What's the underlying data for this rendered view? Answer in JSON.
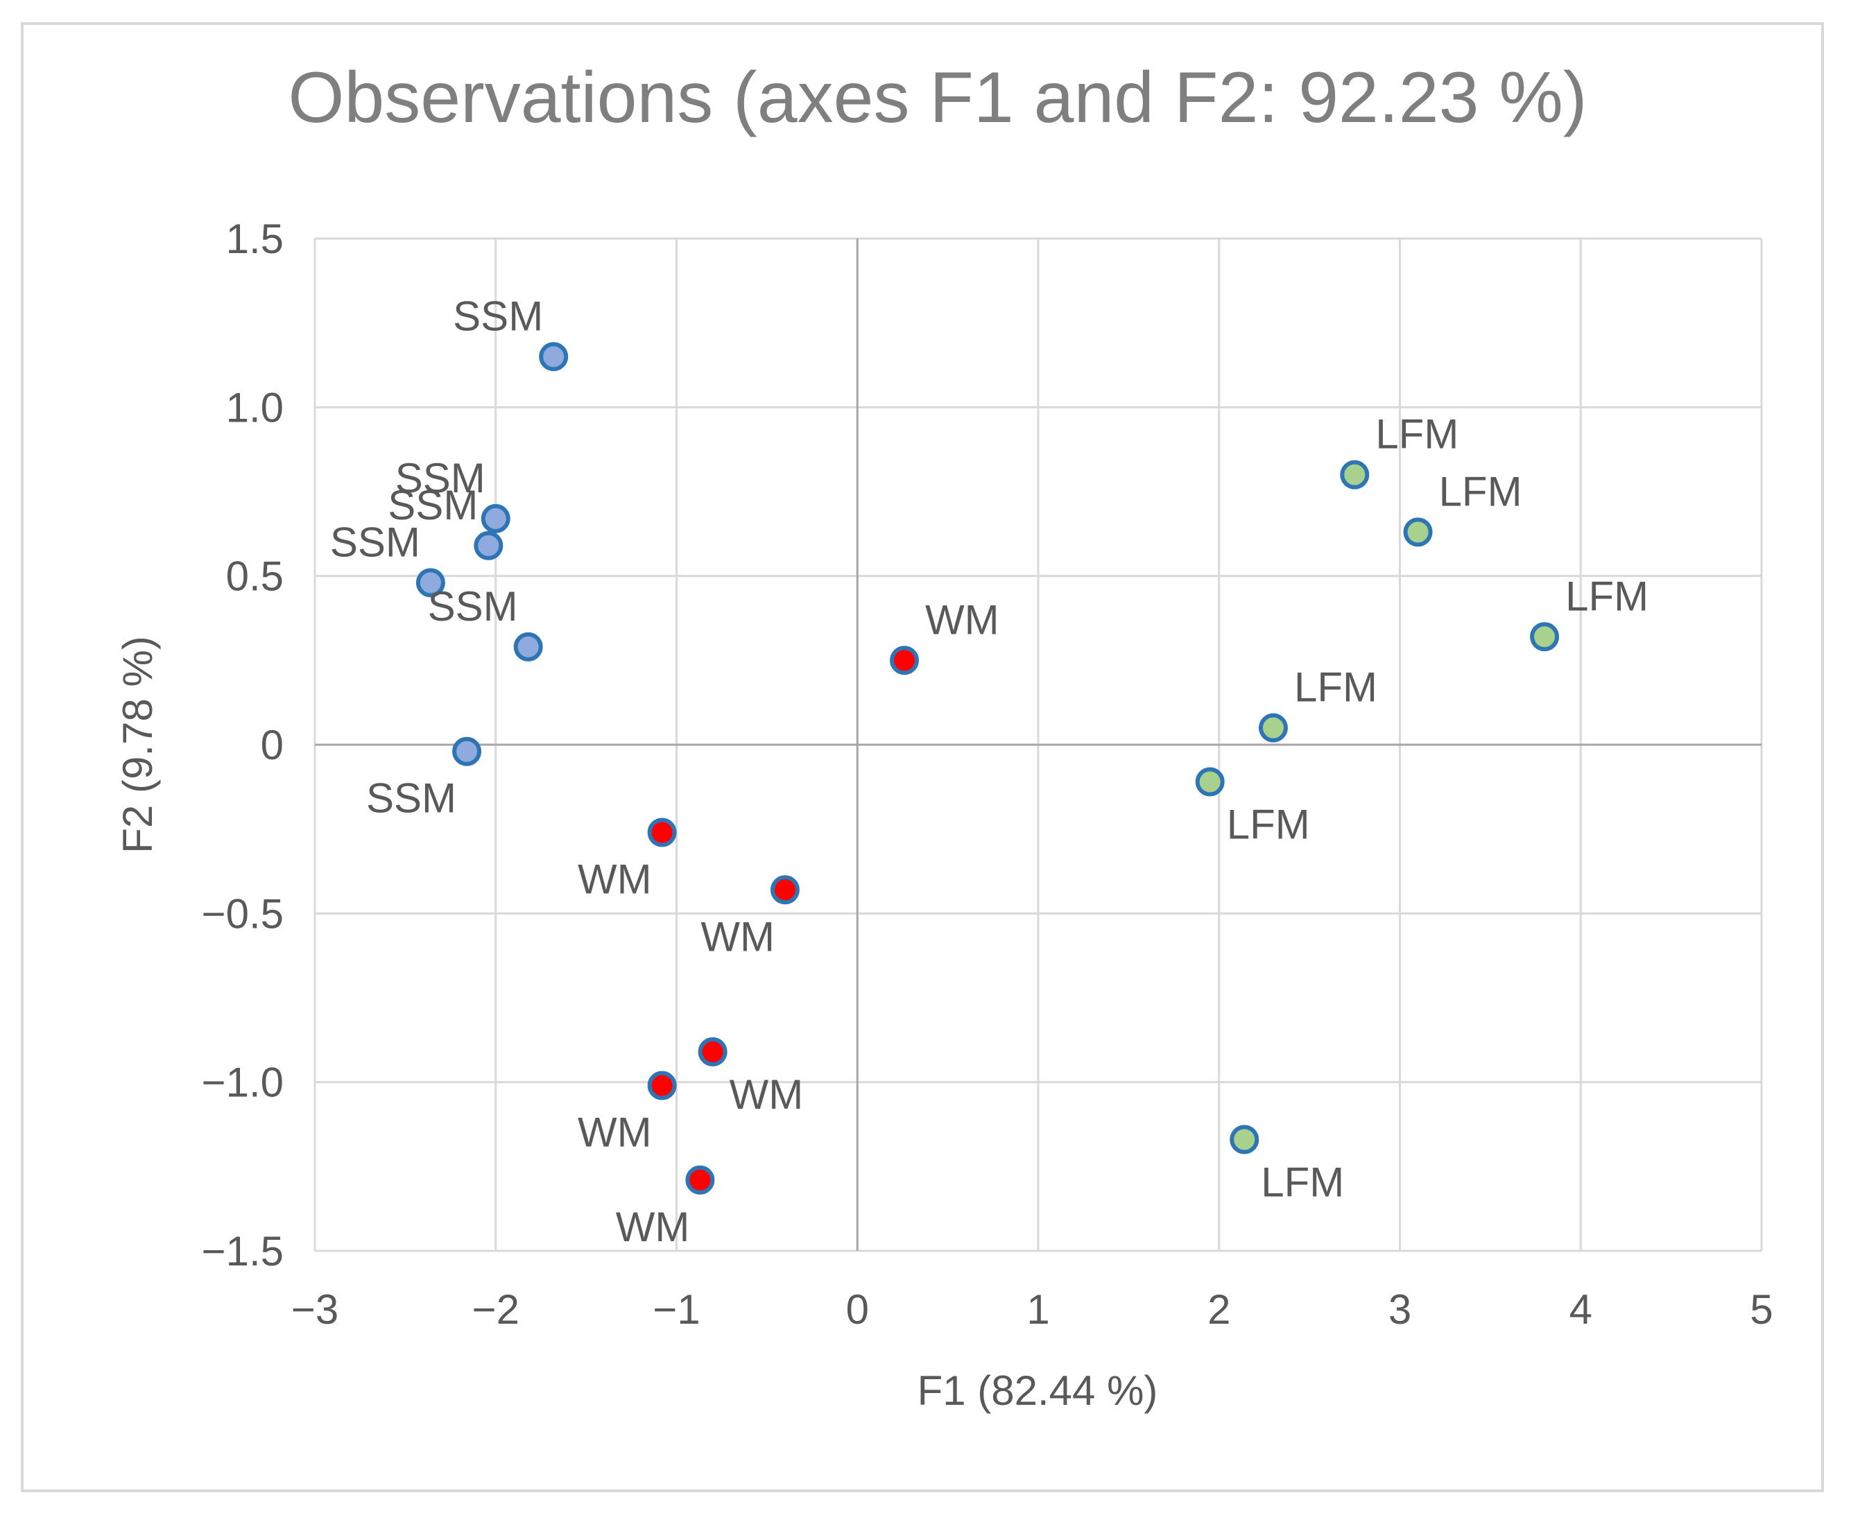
{
  "chart_data": {
    "type": "scatter",
    "title": "Observations (axes F1 and F2: 92.23 %)",
    "xlabel": "F1 (82.44 %)",
    "ylabel": "F2 (9.78 %)",
    "xlim": [
      -3,
      5
    ],
    "ylim": [
      -1.5,
      1.5
    ],
    "x_ticks": [
      -3,
      -2,
      -1,
      0,
      1,
      2,
      3,
      4,
      5
    ],
    "x_tick_labels": [
      "−3",
      "−2",
      "−1",
      "0",
      "1",
      "2",
      "3",
      "4",
      "5"
    ],
    "y_ticks": [
      -1.5,
      -1.0,
      -0.5,
      0,
      0.5,
      1.0,
      1.5
    ],
    "y_tick_labels": [
      "−1.5",
      "−1.0",
      "−0.5",
      "0",
      "0.5",
      "1.0",
      "1.5"
    ],
    "grid": true,
    "legend": false,
    "series": [
      {
        "name": "SSM",
        "fill": "#8faadc",
        "stroke": "#2e75b6",
        "points": [
          {
            "x": -1.68,
            "y": 1.15,
            "label": "SSM",
            "label_pos": "above-left"
          },
          {
            "x": -2.0,
            "y": 0.67,
            "label": "SSM",
            "label_pos": "above-left"
          },
          {
            "x": -2.04,
            "y": 0.59,
            "label": "SSM",
            "label_pos": "above-left"
          },
          {
            "x": -2.36,
            "y": 0.48,
            "label": "SSM",
            "label_pos": "above-left"
          },
          {
            "x": -1.82,
            "y": 0.29,
            "label": "SSM",
            "label_pos": "above-left"
          },
          {
            "x": -2.16,
            "y": -0.02,
            "label": "SSM",
            "label_pos": "below-left"
          }
        ]
      },
      {
        "name": "WM",
        "fill": "#ff0000",
        "stroke": "#2e75b6",
        "points": [
          {
            "x": 0.26,
            "y": 0.25,
            "label": "WM",
            "label_pos": "above-right"
          },
          {
            "x": -1.08,
            "y": -0.26,
            "label": "WM",
            "label_pos": "below-left"
          },
          {
            "x": -0.4,
            "y": -0.43,
            "label": "WM",
            "label_pos": "below-left"
          },
          {
            "x": -0.8,
            "y": -0.91,
            "label": "WM",
            "label_pos": "below-right"
          },
          {
            "x": -1.08,
            "y": -1.01,
            "label": "WM",
            "label_pos": "below-left"
          },
          {
            "x": -0.87,
            "y": -1.29,
            "label": "WM",
            "label_pos": "below-left"
          }
        ]
      },
      {
        "name": "LFM",
        "fill": "#a9d18e",
        "stroke": "#2e75b6",
        "points": [
          {
            "x": 2.75,
            "y": 0.8,
            "label": "LFM",
            "label_pos": "above-right"
          },
          {
            "x": 3.1,
            "y": 0.63,
            "label": "LFM",
            "label_pos": "above-right"
          },
          {
            "x": 3.8,
            "y": 0.32,
            "label": "LFM",
            "label_pos": "above-right"
          },
          {
            "x": 2.3,
            "y": 0.05,
            "label": "LFM",
            "label_pos": "above-right"
          },
          {
            "x": 1.95,
            "y": -0.11,
            "label": "LFM",
            "label_pos": "below-right"
          },
          {
            "x": 2.14,
            "y": -1.17,
            "label": "LFM",
            "label_pos": "below-right"
          }
        ]
      }
    ]
  }
}
